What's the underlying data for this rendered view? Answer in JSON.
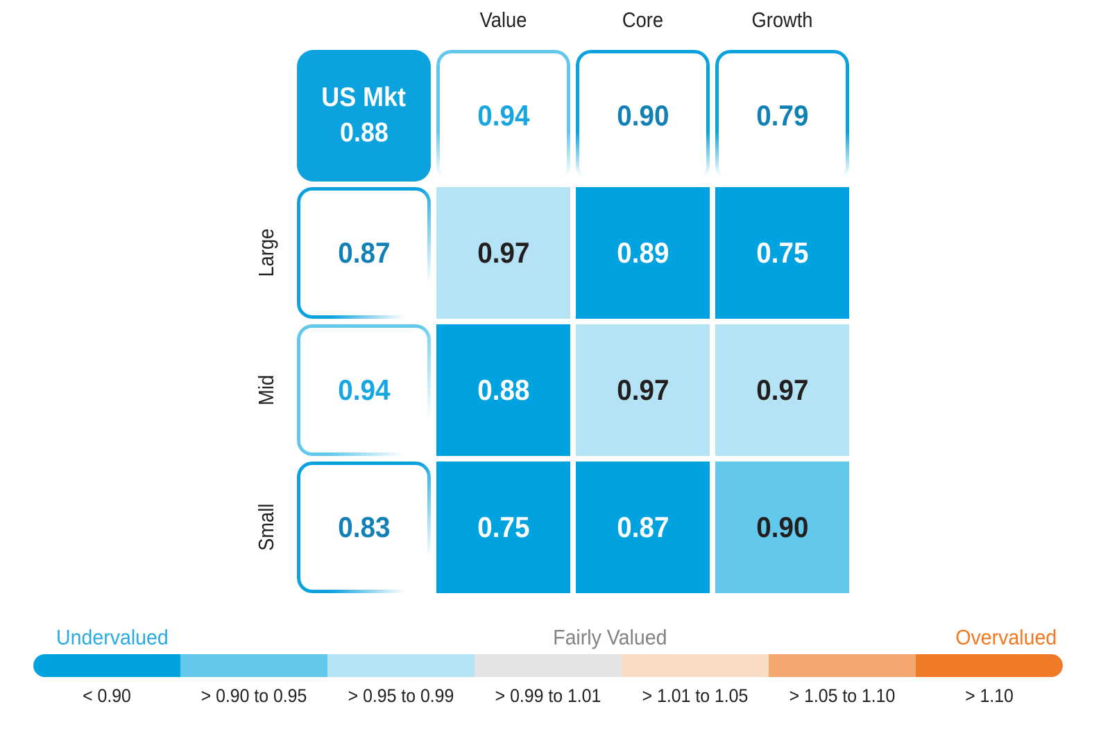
{
  "chart_data": {
    "type": "heatmap",
    "column_headers": [
      "Value",
      "Core",
      "Growth"
    ],
    "row_headers": [
      "Large",
      "Mid",
      "Small"
    ],
    "overall": {
      "label": "US Mkt",
      "value": "0.88"
    },
    "column_summary": [
      {
        "value": "0.94",
        "bucket": "b2"
      },
      {
        "value": "0.90",
        "bucket": "b1"
      },
      {
        "value": "0.79",
        "bucket": "b1"
      }
    ],
    "row_summary": [
      {
        "value": "0.87",
        "bucket": "b1"
      },
      {
        "value": "0.94",
        "bucket": "b2"
      },
      {
        "value": "0.83",
        "bucket": "b1"
      }
    ],
    "rows": [
      {
        "name": "Large",
        "cells": [
          {
            "value": "0.97",
            "bucket": "b3"
          },
          {
            "value": "0.89",
            "bucket": "b1"
          },
          {
            "value": "0.75",
            "bucket": "b1"
          }
        ]
      },
      {
        "name": "Mid",
        "cells": [
          {
            "value": "0.88",
            "bucket": "b1"
          },
          {
            "value": "0.97",
            "bucket": "b3"
          },
          {
            "value": "0.97",
            "bucket": "b3"
          }
        ]
      },
      {
        "name": "Small",
        "cells": [
          {
            "value": "0.75",
            "bucket": "b1"
          },
          {
            "value": "0.87",
            "bucket": "b1"
          },
          {
            "value": "0.90",
            "bucket": "b2"
          }
        ]
      }
    ],
    "legend": {
      "undervalued_label": "Undervalued",
      "fairly_valued_label": "Fairly Valued",
      "overvalued_label": "Overvalued",
      "label_colors": {
        "undervalued": "#29abe2",
        "fairly_valued": "#808285",
        "overvalued": "#f4771f"
      },
      "bins": [
        {
          "range": "< 0.90",
          "color": "#00a3e0"
        },
        {
          "range": "> 0.90 to 0.95",
          "color": "#62c8ec"
        },
        {
          "range": "> 0.95 to 0.99",
          "color": "#b5e3f6"
        },
        {
          "range": "> 0.99 to 1.01",
          "color": "#e5e4e4"
        },
        {
          "range": "> 1.01 to 1.05",
          "color": "#fadcc3"
        },
        {
          "range": "> 1.05 to 1.10",
          "color": "#f4a76e"
        },
        {
          "range": "> 1.10",
          "color": "#ef7a28"
        }
      ]
    },
    "overall_box_color": "#0ba2dd"
  }
}
